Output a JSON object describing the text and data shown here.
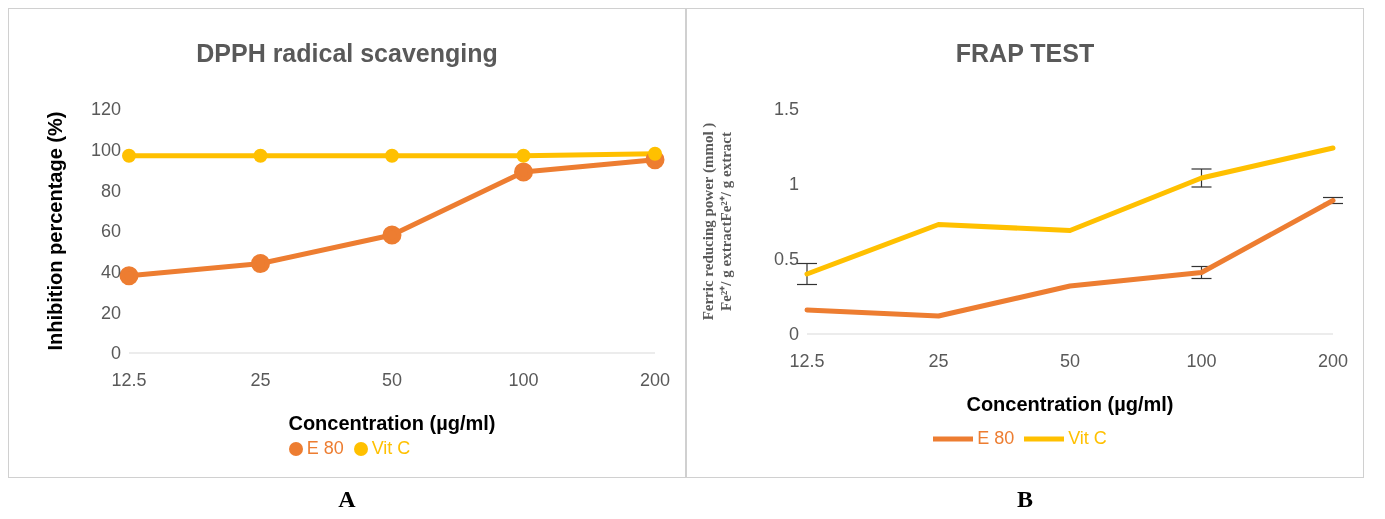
{
  "chart_data": [
    {
      "type": "line",
      "title": "DPPH radical scavenging",
      "xlabel": "Concentration (µg/ml)",
      "ylabel": "Inhibition percentage (%)",
      "categories": [
        "12.5",
        "25",
        "50",
        "100",
        "200"
      ],
      "series": [
        {
          "name": "E 80",
          "color": "#ed7d31",
          "values": [
            38,
            44,
            58,
            89,
            95
          ]
        },
        {
          "name": "Vit C",
          "color": "#ffc000",
          "values": [
            97,
            97,
            97,
            97,
            98
          ]
        }
      ],
      "ylim": [
        0,
        120
      ],
      "yticks": [
        0,
        20,
        40,
        60,
        80,
        100,
        120
      ],
      "grid": false,
      "legend": "bottom",
      "marker": "circle",
      "annotations": [
        "A"
      ]
    },
    {
      "type": "line",
      "title": "FRAP TEST",
      "xlabel": "Concentration (µg/ml)",
      "ylabel": "Ferric reducing power (mmol )\nFe²⁺/ g extractFe²⁺/ g extract",
      "categories": [
        "12.5",
        "25",
        "50",
        "100",
        "200"
      ],
      "series": [
        {
          "name": "E 80",
          "color": "#ed7d31",
          "values": [
            0.16,
            0.12,
            0.32,
            0.41,
            0.89
          ],
          "errors": [
            null,
            null,
            null,
            0.04,
            0.02
          ]
        },
        {
          "name": "Vit C",
          "color": "#ffc000",
          "values": [
            0.4,
            0.73,
            0.69,
            1.04,
            1.24
          ],
          "errors": [
            0.07,
            null,
            null,
            0.06,
            null
          ]
        }
      ],
      "ylim": [
        0,
        1.5
      ],
      "yticks": [
        0,
        0.5,
        1,
        1.5
      ],
      "grid": false,
      "legend": "bottom",
      "marker": "none",
      "annotations": [
        "B"
      ]
    }
  ]
}
